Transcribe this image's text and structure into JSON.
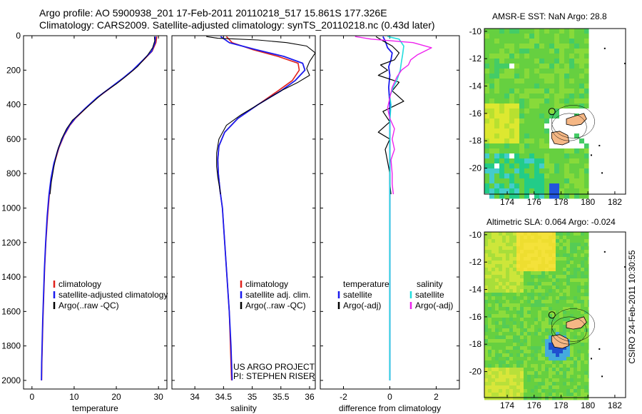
{
  "header": {
    "title_line1": "Argo profile: AO 5900938_201 17-Feb-2011 20110218_517 15.861S 177.326E",
    "title_line2": "Climatology: CARS2009. Satellite-adjusted climatology: synTS_20110218.nc (0.43d later)"
  },
  "colors": {
    "climatology": "#e0201a",
    "satellite": "#1a1aee",
    "argo": "#000000",
    "sat_salinity": "#22dddd",
    "argo_salinity": "#ee22ee"
  },
  "chart_data": [
    {
      "type": "line",
      "id": "temperature",
      "xlabel": "temperature",
      "ylabel": "",
      "xlim": [
        -2,
        32
      ],
      "ylim": [
        2050,
        0
      ],
      "xticks": [
        0,
        10,
        20,
        30
      ],
      "yticks": [
        0,
        200,
        400,
        600,
        800,
        1000,
        1200,
        1400,
        1600,
        1800,
        2000
      ],
      "legend": [
        "climatology",
        "satellite-adjusted climatology",
        "Argo(..raw -QC)"
      ],
      "series": [
        {
          "name": "climatology",
          "color": "#e0201a",
          "width": 1.6,
          "points": [
            [
              29.6,
              5
            ],
            [
              29.4,
              40
            ],
            [
              28.5,
              90
            ],
            [
              26.5,
              140
            ],
            [
              24,
              200
            ],
            [
              21.5,
              250
            ],
            [
              18.8,
              300
            ],
            [
              15.5,
              360
            ],
            [
              12.8,
              420
            ],
            [
              10.3,
              480
            ],
            [
              9.0,
              520
            ],
            [
              7.6,
              580
            ],
            [
              6.4,
              650
            ],
            [
              5.3,
              740
            ],
            [
              4.6,
              830
            ],
            [
              4.1,
              930
            ],
            [
              3.7,
              1050
            ],
            [
              3.3,
              1200
            ],
            [
              3.0,
              1350
            ],
            [
              2.8,
              1500
            ],
            [
              2.6,
              1650
            ],
            [
              2.45,
              1800
            ],
            [
              2.35,
              1900
            ],
            [
              2.3,
              2000
            ]
          ]
        },
        {
          "name": "satellite-adjusted climatology",
          "color": "#1a1aee",
          "width": 1.8,
          "points": [
            [
              29.3,
              5
            ],
            [
              29.2,
              40
            ],
            [
              28.4,
              90
            ],
            [
              26.4,
              140
            ],
            [
              23.9,
              200
            ],
            [
              21.4,
              250
            ],
            [
              18.7,
              300
            ],
            [
              15.4,
              360
            ],
            [
              12.7,
              420
            ],
            [
              10.2,
              480
            ],
            [
              8.9,
              520
            ],
            [
              7.5,
              580
            ],
            [
              6.3,
              650
            ],
            [
              5.2,
              740
            ],
            [
              4.5,
              830
            ],
            [
              4.0,
              930
            ],
            [
              3.6,
              1050
            ],
            [
              3.25,
              1200
            ],
            [
              2.95,
              1350
            ],
            [
              2.75,
              1500
            ],
            [
              2.55,
              1650
            ],
            [
              2.4,
              1800
            ],
            [
              2.3,
              1900
            ],
            [
              2.25,
              2000
            ]
          ]
        },
        {
          "name": "Argo(..raw -QC)",
          "color": "#000000",
          "width": 1.0,
          "points": [
            [
              29.0,
              5
            ],
            [
              29.1,
              30
            ],
            [
              28.6,
              70
            ],
            [
              27.2,
              120
            ],
            [
              25.0,
              180
            ],
            [
              22.6,
              230
            ],
            [
              20.0,
              280
            ],
            [
              17.0,
              330
            ],
            [
              14.2,
              390
            ],
            [
              11.5,
              450
            ],
            [
              9.6,
              490
            ],
            [
              8.2,
              540
            ],
            [
              7.0,
              600
            ],
            [
              6.0,
              670
            ],
            [
              5.2,
              760
            ],
            [
              4.6,
              850
            ],
            [
              4.3,
              920
            ]
          ]
        }
      ]
    },
    {
      "type": "line",
      "id": "salinity",
      "xlabel": "salinity",
      "xlim": [
        33.6,
        36.1
      ],
      "ylim": [
        2050,
        0
      ],
      "xticks": [
        34,
        34.5,
        35,
        35.5,
        36
      ],
      "legend": [
        "climatology",
        "satellite adj. clim.",
        "Argo(..raw -QC)"
      ],
      "credit": [
        "US ARGO PROJECT",
        "PI: STEPHEN RISER"
      ],
      "series": [
        {
          "name": "climatology",
          "color": "#e0201a",
          "width": 1.6,
          "points": [
            [
              34.55,
              5
            ],
            [
              34.65,
              40
            ],
            [
              35.0,
              80
            ],
            [
              35.45,
              120
            ],
            [
              35.8,
              160
            ],
            [
              35.82,
              200
            ],
            [
              35.7,
              260
            ],
            [
              35.45,
              320
            ],
            [
              35.1,
              400
            ],
            [
              34.75,
              480
            ],
            [
              34.52,
              560
            ],
            [
              34.42,
              640
            ],
            [
              34.4,
              720
            ],
            [
              34.41,
              800
            ],
            [
              34.44,
              900
            ],
            [
              34.48,
              1000
            ],
            [
              34.52,
              1200
            ],
            [
              34.56,
              1400
            ],
            [
              34.6,
              1600
            ],
            [
              34.62,
              1800
            ],
            [
              34.64,
              2000
            ]
          ]
        },
        {
          "name": "satellite adj. clim.",
          "color": "#1a1aee",
          "width": 1.8,
          "points": [
            [
              34.45,
              5
            ],
            [
              34.6,
              40
            ],
            [
              35.05,
              80
            ],
            [
              35.55,
              120
            ],
            [
              35.88,
              160
            ],
            [
              35.92,
              200
            ],
            [
              35.75,
              260
            ],
            [
              35.5,
              320
            ],
            [
              35.1,
              400
            ],
            [
              34.75,
              480
            ],
            [
              34.52,
              560
            ],
            [
              34.42,
              640
            ],
            [
              34.4,
              720
            ],
            [
              34.41,
              800
            ],
            [
              34.44,
              900
            ],
            [
              34.48,
              1000
            ],
            [
              34.52,
              1200
            ],
            [
              34.56,
              1400
            ],
            [
              34.6,
              1600
            ],
            [
              34.63,
              1800
            ],
            [
              34.65,
              2000
            ]
          ]
        },
        {
          "name": "Argo(..raw -QC)",
          "color": "#000000",
          "width": 1.1,
          "points": [
            [
              34.2,
              5
            ],
            [
              34.4,
              15
            ],
            [
              35.1,
              25
            ],
            [
              35.6,
              40
            ],
            [
              35.95,
              60
            ],
            [
              36.1,
              100
            ],
            [
              36.0,
              150
            ],
            [
              35.95,
              190
            ],
            [
              36.0,
              230
            ],
            [
              35.8,
              270
            ],
            [
              35.5,
              320
            ],
            [
              35.1,
              400
            ],
            [
              34.8,
              460
            ],
            [
              34.55,
              520
            ],
            [
              34.42,
              600
            ],
            [
              34.38,
              680
            ],
            [
              34.38,
              760
            ],
            [
              34.4,
              820
            ],
            [
              34.43,
              880
            ],
            [
              34.45,
              920
            ]
          ]
        }
      ]
    },
    {
      "type": "line",
      "id": "difference",
      "xlabel": "difference from climatology",
      "xlim": [
        -3,
        3
      ],
      "ylim": [
        2050,
        0
      ],
      "xticks": [
        -2,
        0,
        2
      ],
      "legend_temperature_header": "temperature",
      "legend_salinity_header": "salinity",
      "legend_temperature": [
        "satellite",
        "Argo(-adj)"
      ],
      "legend_salinity": [
        "satellite",
        "Argo(-adj)"
      ],
      "series": [
        {
          "name": "temperature satellite",
          "color": "#1a1aee",
          "width": 1.8,
          "points": [
            [
              -0.3,
              5
            ],
            [
              -0.2,
              30
            ],
            [
              -0.1,
              70
            ],
            [
              0.1,
              100
            ],
            [
              0.05,
              140
            ],
            [
              -0.05,
              180
            ],
            [
              0.0,
              230
            ],
            [
              -0.05,
              300
            ],
            [
              0.0,
              400
            ],
            [
              0.0,
              500
            ],
            [
              0.0,
              600
            ],
            [
              0.0,
              800
            ],
            [
              0.0,
              1000
            ],
            [
              0.0,
              1200
            ],
            [
              0.0,
              1400
            ],
            [
              0.0,
              1600
            ],
            [
              0.0,
              1800
            ],
            [
              0.0,
              2000
            ]
          ]
        },
        {
          "name": "temperature Argo(-adj)",
          "color": "#000000",
          "width": 1.2,
          "points": [
            [
              -0.6,
              5
            ],
            [
              -0.3,
              30
            ],
            [
              0.1,
              60
            ],
            [
              0.4,
              100
            ],
            [
              0.2,
              140
            ],
            [
              -0.4,
              170
            ],
            [
              -0.1,
              200
            ],
            [
              -0.5,
              230
            ],
            [
              0.4,
              270
            ],
            [
              0.1,
              320
            ],
            [
              0.6,
              380
            ],
            [
              -0.3,
              440
            ],
            [
              0.0,
              500
            ],
            [
              -0.5,
              560
            ],
            [
              0.0,
              600
            ],
            [
              -0.2,
              660
            ],
            [
              -0.1,
              730
            ],
            [
              0.0,
              800
            ],
            [
              0.0,
              860
            ],
            [
              0.05,
              920
            ]
          ]
        },
        {
          "name": "salinity satellite",
          "color": "#22dddd",
          "width": 1.6,
          "points": [
            [
              -0.1,
              5
            ],
            [
              0.4,
              20
            ],
            [
              0.6,
              60
            ],
            [
              0.55,
              110
            ],
            [
              0.5,
              150
            ],
            [
              0.45,
              200
            ],
            [
              0.3,
              260
            ],
            [
              0.15,
              300
            ],
            [
              0.0,
              350
            ],
            [
              0.05,
              400
            ],
            [
              0.0,
              500
            ],
            [
              0.0,
              600
            ],
            [
              0.0,
              800
            ],
            [
              0.0,
              1000
            ],
            [
              0.0,
              1200
            ],
            [
              0.0,
              1400
            ],
            [
              0.0,
              1600
            ],
            [
              0.0,
              1800
            ],
            [
              0.0,
              2000
            ]
          ]
        },
        {
          "name": "salinity Argo(-adj)",
          "color": "#ee22ee",
          "width": 1.4,
          "points": [
            [
              -1.5,
              5
            ],
            [
              -0.8,
              20
            ],
            [
              1.0,
              40
            ],
            [
              1.8,
              70
            ],
            [
              1.2,
              110
            ],
            [
              0.9,
              140
            ],
            [
              0.8,
              170
            ],
            [
              0.5,
              200
            ],
            [
              0.3,
              240
            ],
            [
              0.1,
              300
            ],
            [
              0.0,
              360
            ],
            [
              -0.1,
              420
            ],
            [
              0.0,
              480
            ],
            [
              0.2,
              540
            ],
            [
              0.1,
              600
            ],
            [
              0.2,
              660
            ],
            [
              0.05,
              720
            ],
            [
              0.1,
              800
            ],
            [
              0.1,
              860
            ],
            [
              0.15,
              920
            ]
          ]
        }
      ]
    },
    {
      "type": "heatmap",
      "id": "amsr-e-sst",
      "title": "AMSR-E SST: NaN Argo: 28.8",
      "xlim": [
        172.3,
        182.8
      ],
      "ylim": [
        -21.9,
        -9.8
      ],
      "xticks": [
        174,
        176,
        178,
        180,
        182
      ],
      "yticks": [
        -10,
        -12,
        -14,
        -16,
        -18,
        -20
      ],
      "argo_position": [
        177.326,
        -15.861
      ]
    },
    {
      "type": "heatmap",
      "id": "altimetric-sla",
      "title": "Altimetric SLA: 0.064 Argo: -0.024",
      "xlim": [
        172.3,
        182.8
      ],
      "ylim": [
        -21.9,
        -9.8
      ],
      "xticks": [
        174,
        176,
        178,
        180,
        182
      ],
      "yticks": [
        -10,
        -12,
        -14,
        -16,
        -18,
        -20
      ],
      "argo_position": [
        177.326,
        -15.861
      ]
    }
  ],
  "footer": {
    "stamp": "CSIRO 24-Feb-2011 10:30:55"
  }
}
